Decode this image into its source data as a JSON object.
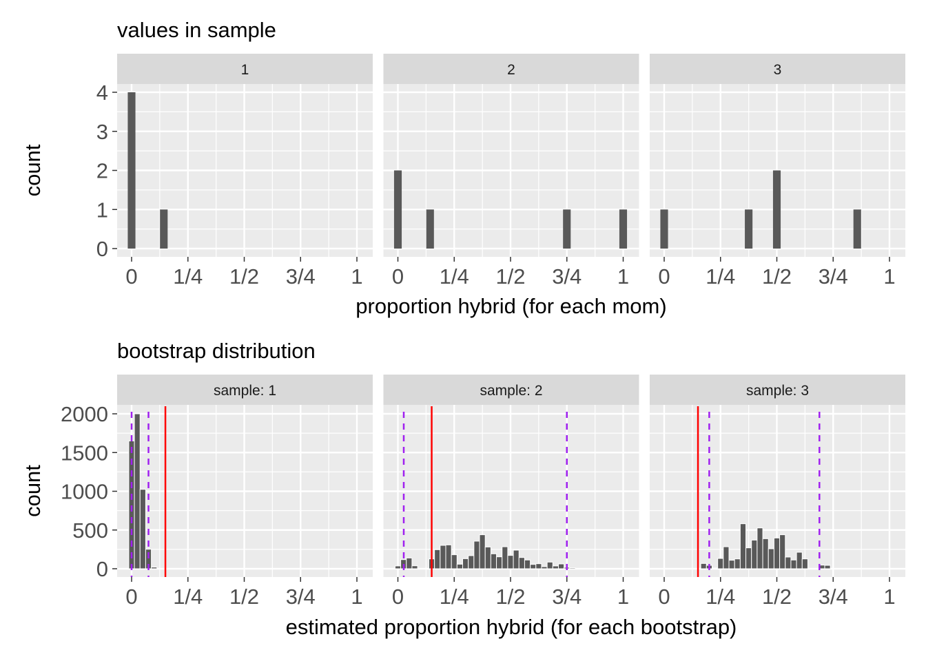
{
  "chart_data": [
    {
      "type": "bar",
      "title": "values in sample",
      "xlabel": "proportion hybrid (for each mom)",
      "ylabel": "count",
      "xlim": [
        0,
        1
      ],
      "ylim": [
        0,
        4
      ],
      "x_ticks": [
        "0",
        "1/4",
        "1/2",
        "3/4",
        "1"
      ],
      "y_ticks": [
        "0",
        "1",
        "2",
        "3",
        "4"
      ],
      "y_tick_values": [
        0,
        1,
        2,
        3,
        4
      ],
      "grid": true,
      "bar_color": "#595959",
      "facets": [
        {
          "label": "1",
          "bars": [
            {
              "x": 0,
              "count": 4
            },
            {
              "x": 0.143,
              "count": 1
            }
          ]
        },
        {
          "label": "2",
          "bars": [
            {
              "x": 0,
              "count": 2
            },
            {
              "x": 0.143,
              "count": 1
            },
            {
              "x": 0.75,
              "count": 1
            },
            {
              "x": 1,
              "count": 1
            }
          ]
        },
        {
          "label": "3",
          "bars": [
            {
              "x": 0,
              "count": 1
            },
            {
              "x": 0.375,
              "count": 1
            },
            {
              "x": 0.5,
              "count": 2
            },
            {
              "x": 0.857,
              "count": 1
            }
          ]
        }
      ]
    },
    {
      "type": "bar",
      "title": "bootstrap distribution",
      "xlabel": "estimated proportion hybrid (for each bootstrap)",
      "ylabel": "count",
      "xlim": [
        0,
        1
      ],
      "ylim": [
        0,
        2000
      ],
      "x_ticks": [
        "0",
        "1/4",
        "1/2",
        "3/4",
        "1"
      ],
      "y_ticks": [
        "0",
        "500",
        "1000",
        "1500",
        "2000"
      ],
      "y_tick_values": [
        0,
        500,
        1000,
        1500,
        2000
      ],
      "grid": true,
      "bar_color": "#595959",
      "true_value_color": "#ff0000",
      "interval_color": "#a020f0",
      "binwidth": 0.025,
      "facets": [
        {
          "label": "sample: 1",
          "true_value": 0.15,
          "interval": [
            0,
            0.075
          ],
          "bins": [
            0,
            0.025,
            0.05,
            0.075,
            0.1
          ],
          "counts": [
            1650,
            2000,
            1025,
            252,
            21
          ]
        },
        {
          "label": "sample: 2",
          "true_value": 0.15,
          "interval": [
            0.026,
            0.75
          ],
          "bins": [
            0,
            0.025,
            0.05,
            0.075,
            0.1,
            0.125,
            0.15,
            0.175,
            0.2,
            0.225,
            0.25,
            0.275,
            0.3,
            0.325,
            0.35,
            0.375,
            0.4,
            0.425,
            0.45,
            0.475,
            0.5,
            0.525,
            0.55,
            0.575,
            0.6,
            0.625,
            0.65,
            0.675,
            0.7,
            0.725,
            0.75,
            0.775,
            0.8,
            0.825,
            0.85,
            0.875,
            0.9,
            0.925
          ],
          "counts": [
            36,
            118,
            139,
            38,
            0,
            0,
            127,
            246,
            302,
            308,
            181,
            59,
            130,
            169,
            356,
            439,
            281,
            193,
            154,
            284,
            172,
            240,
            145,
            113,
            56,
            65,
            27,
            86,
            36,
            62,
            18,
            12,
            0,
            5,
            0,
            5,
            0,
            2
          ]
        },
        {
          "label": "sample: 3",
          "true_value": 0.15,
          "interval": [
            0.2,
            0.689
          ],
          "bins": [
            0.075,
            0.1,
            0.125,
            0.15,
            0.175,
            0.2,
            0.225,
            0.25,
            0.275,
            0.3,
            0.325,
            0.35,
            0.375,
            0.4,
            0.425,
            0.45,
            0.475,
            0.5,
            0.525,
            0.55,
            0.575,
            0.6,
            0.625,
            0.65,
            0.675,
            0.7,
            0.725,
            0.75,
            0.775,
            0.8
          ],
          "counts": [
            1,
            2,
            0,
            0,
            68,
            44,
            9,
            133,
            284,
            110,
            127,
            581,
            270,
            370,
            527,
            388,
            258,
            397,
            439,
            151,
            113,
            213,
            127,
            0,
            0,
            47,
            44,
            0,
            0,
            2
          ]
        }
      ]
    }
  ]
}
